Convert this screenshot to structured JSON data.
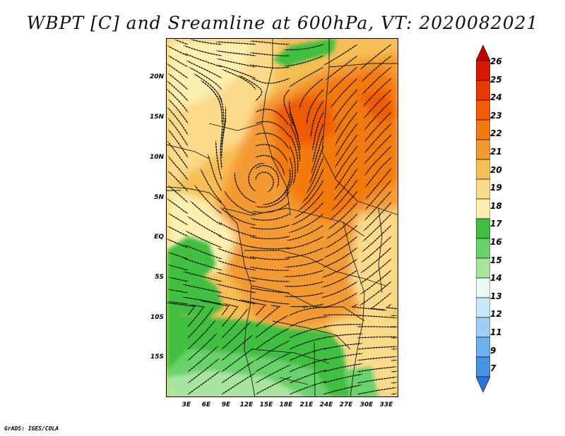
{
  "title": "WBPT [C] and Sreamline at 600hPa, VT: 2020082021",
  "footer": "GrADS: IGES/COLA",
  "map": {
    "lat_labels": [
      "20N",
      "15N",
      "10N",
      "5N",
      "EQ",
      "5S",
      "10S",
      "15S"
    ],
    "lon_labels": [
      "3E",
      "6E",
      "9E",
      "12E",
      "15E",
      "18E",
      "21E",
      "24E",
      "27E",
      "30E",
      "33E"
    ],
    "extent": {
      "lon": [
        0,
        35
      ],
      "lat": [
        -20,
        24
      ]
    }
  },
  "colorbar": {
    "labels": [
      "26",
      "25",
      "24",
      "23",
      "22",
      "21",
      "20",
      "19",
      "18",
      "17",
      "16",
      "15",
      "14",
      "13",
      "12",
      "11",
      "9",
      "7"
    ],
    "colors": [
      "#c00000",
      "#d81a00",
      "#e83a00",
      "#f05a00",
      "#f37a10",
      "#f49a30",
      "#f6bf55",
      "#fbdb8a",
      "#fdf0b0",
      "#3fbf40",
      "#6ad26a",
      "#a8e6a0",
      "#e8fbf4",
      "#c8e8fa",
      "#9fcff5",
      "#6fb0ee",
      "#4892e6",
      "#2f73e0"
    ]
  }
}
